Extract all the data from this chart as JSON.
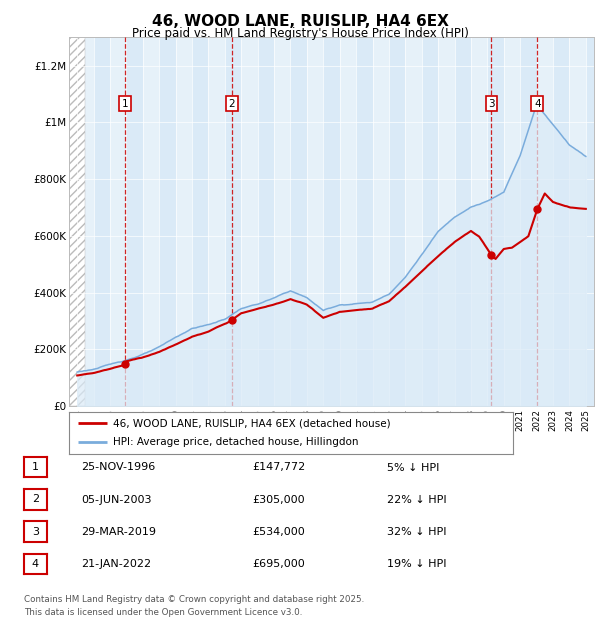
{
  "title": "46, WOOD LANE, RUISLIP, HA4 6EX",
  "subtitle": "Price paid vs. HM Land Registry's House Price Index (HPI)",
  "footer": "Contains HM Land Registry data © Crown copyright and database right 2025.\nThis data is licensed under the Open Government Licence v3.0.",
  "legend_line1": "46, WOOD LANE, RUISLIP, HA4 6EX (detached house)",
  "legend_line2": "HPI: Average price, detached house, Hillingdon",
  "sale_color": "#cc0000",
  "hpi_color": "#7aacdc",
  "hpi_fill_color": "#daeaf7",
  "background_color": "#ffffff",
  "plot_bg_color": "#daeaf7",
  "sale_events": [
    {
      "label": "1",
      "date_num": 1996.9,
      "price": 147772
    },
    {
      "label": "2",
      "date_num": 2003.43,
      "price": 305000
    },
    {
      "label": "3",
      "date_num": 2019.25,
      "price": 534000
    },
    {
      "label": "4",
      "date_num": 2022.05,
      "price": 695000
    }
  ],
  "table_rows": [
    {
      "num": "1",
      "date": "25-NOV-1996",
      "price": "£147,772",
      "pct": "5% ↓ HPI"
    },
    {
      "num": "2",
      "date": "05-JUN-2003",
      "price": "£305,000",
      "pct": "22% ↓ HPI"
    },
    {
      "num": "3",
      "date": "29-MAR-2019",
      "price": "£534,000",
      "pct": "32% ↓ HPI"
    },
    {
      "num": "4",
      "date": "21-JAN-2022",
      "price": "£695,000",
      "pct": "19% ↓ HPI"
    }
  ],
  "ylim": [
    0,
    1300000
  ],
  "xlim_start": 1993.5,
  "xlim_end": 2025.5,
  "hatch_end": 1994.5,
  "yticks": [
    0,
    200000,
    400000,
    600000,
    800000,
    1000000,
    1200000
  ],
  "ytick_labels": [
    "£0",
    "£200K",
    "£400K",
    "£600K",
    "£800K",
    "£1M",
    "£1.2M"
  ],
  "hpi_anchors_t": [
    1994,
    1995,
    1996,
    1997,
    1998,
    1999,
    2000,
    2001,
    2002,
    2003,
    2004,
    2005,
    2006,
    2007,
    2008,
    2009,
    2010,
    2011,
    2012,
    2013,
    2014,
    2015,
    2016,
    2017,
    2018,
    2019,
    2020,
    2021,
    2022,
    2023,
    2024,
    2025
  ],
  "hpi_anchors_p": [
    120000,
    130000,
    145000,
    162000,
    182000,
    205000,
    238000,
    270000,
    283000,
    302000,
    340000,
    355000,
    375000,
    400000,
    375000,
    330000,
    350000,
    355000,
    360000,
    390000,
    450000,
    530000,
    610000,
    660000,
    700000,
    720000,
    750000,
    880000,
    1060000,
    990000,
    920000,
    880000
  ],
  "sale_anchors_t": [
    1994,
    1995,
    1996,
    1996.9,
    1997,
    1998,
    1999,
    2000,
    2001,
    2002,
    2003.43,
    2004,
    2005,
    2006,
    2007,
    2008,
    2009,
    2010,
    2011,
    2012,
    2013,
    2014,
    2015,
    2016,
    2017,
    2018,
    2018.5,
    2019.25,
    2019.5,
    2020,
    2020.5,
    2021,
    2021.5,
    2022.05,
    2022.5,
    2023,
    2023.5,
    2024,
    2025
  ],
  "sale_anchors_p": [
    108000,
    118000,
    133000,
    147772,
    160000,
    175000,
    195000,
    220000,
    248000,
    265000,
    305000,
    330000,
    345000,
    360000,
    380000,
    360000,
    315000,
    335000,
    340000,
    345000,
    370000,
    420000,
    475000,
    530000,
    580000,
    620000,
    600000,
    534000,
    520000,
    555000,
    560000,
    580000,
    600000,
    695000,
    750000,
    720000,
    710000,
    700000,
    695000
  ]
}
